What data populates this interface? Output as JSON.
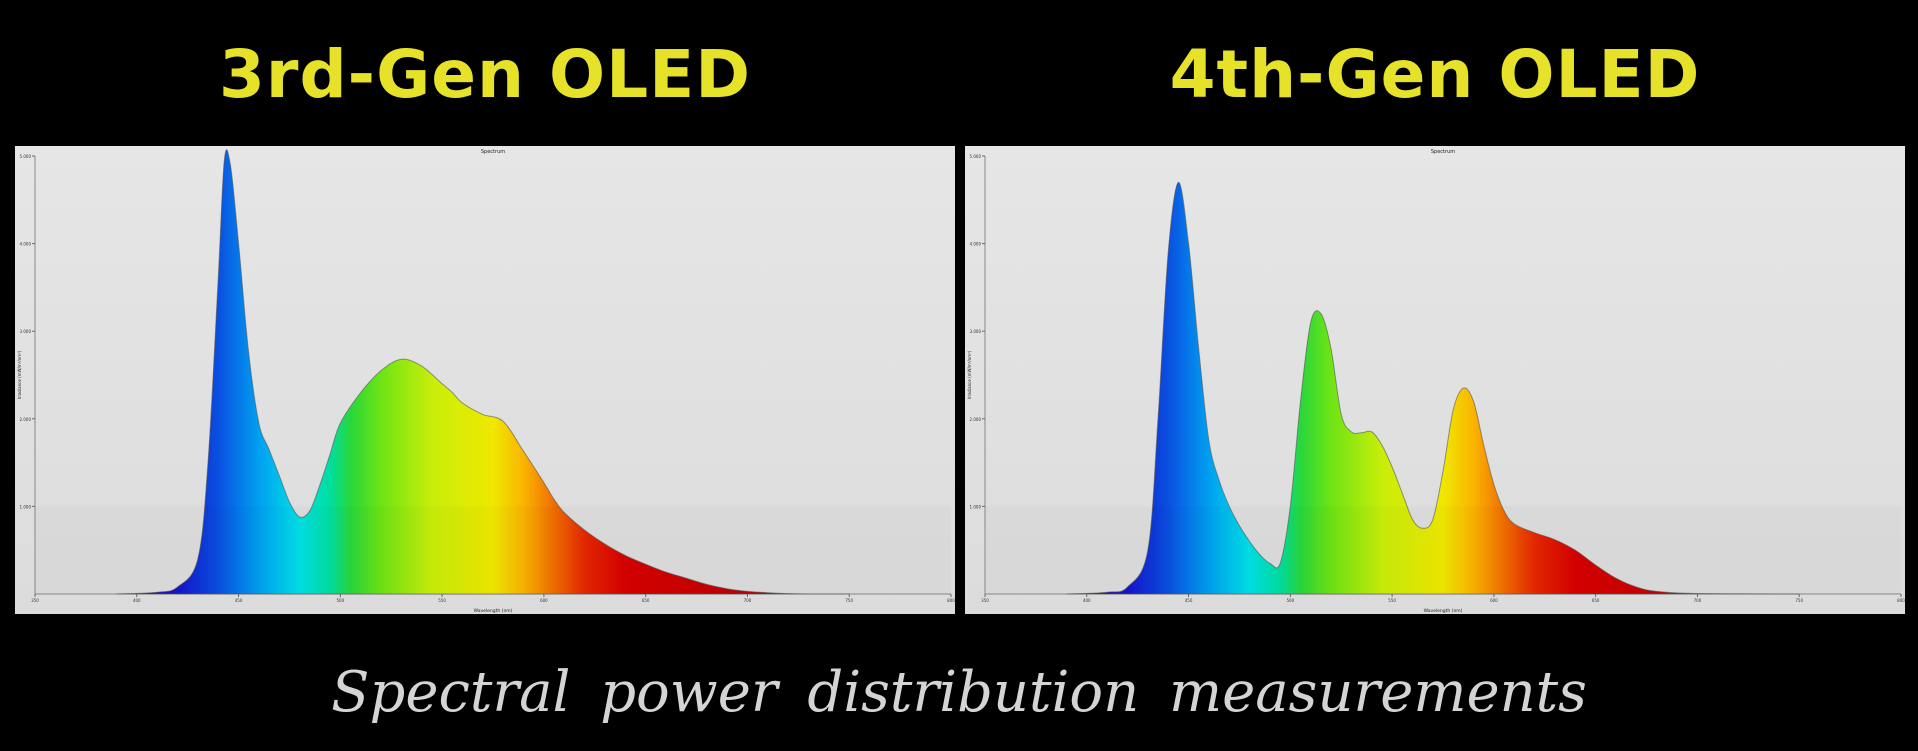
{
  "page": {
    "caption": "Spectral power distribution measurements"
  },
  "colors": {
    "title": "#e6e22a",
    "background": "#000000",
    "plot_background": "#e4e4e4",
    "caption": "#d4d4d4"
  },
  "chart_data": [
    {
      "type": "area",
      "panel_title": "3rd-Gen OLED",
      "title": "Spectrum",
      "xlabel": "Wavelength (nm)",
      "ylabel": "Irradiance (mW/m²/nm²)",
      "xlim": [
        350,
        800
      ],
      "ylim": [
        0,
        5
      ],
      "xticks": [
        350,
        400,
        450,
        500,
        550,
        600,
        650,
        700,
        750,
        800
      ],
      "yticks": [
        1,
        2,
        3,
        4,
        5
      ],
      "grid": false,
      "fill": "wavelength-spectrum-gradient",
      "x": [
        390,
        410,
        420,
        430,
        435,
        440,
        443,
        446,
        450,
        455,
        460,
        465,
        470,
        475,
        480,
        485,
        490,
        495,
        500,
        510,
        520,
        530,
        540,
        550,
        555,
        560,
        570,
        580,
        590,
        600,
        605,
        610,
        620,
        630,
        640,
        650,
        660,
        670,
        680,
        690,
        700,
        710,
        720,
        730,
        750
      ],
      "y": [
        0,
        0.02,
        0.08,
        0.4,
        1.5,
        3.6,
        4.95,
        4.9,
        4.0,
        2.75,
        1.95,
        1.65,
        1.35,
        1.05,
        0.88,
        0.95,
        1.25,
        1.6,
        1.95,
        2.3,
        2.55,
        2.68,
        2.6,
        2.4,
        2.3,
        2.18,
        2.05,
        1.97,
        1.63,
        1.27,
        1.08,
        0.93,
        0.73,
        0.57,
        0.44,
        0.34,
        0.25,
        0.18,
        0.11,
        0.06,
        0.03,
        0.015,
        0.005,
        0,
        0
      ]
    },
    {
      "type": "area",
      "panel_title": "4th-Gen OLED",
      "title": "Spectrum",
      "xlabel": "Wavelength (nm)",
      "ylabel": "Irradiance (mW/m²/nm²)",
      "xlim": [
        350,
        800
      ],
      "ylim": [
        0,
        5
      ],
      "xticks": [
        350,
        400,
        450,
        500,
        550,
        600,
        650,
        700,
        750,
        800
      ],
      "yticks": [
        1,
        2,
        3,
        4,
        5
      ],
      "grid": false,
      "fill": "wavelength-spectrum-gradient",
      "x": [
        390,
        410,
        420,
        430,
        435,
        440,
        445,
        450,
        455,
        460,
        465,
        470,
        475,
        480,
        485,
        490,
        495,
        500,
        505,
        510,
        515,
        520,
        525,
        530,
        535,
        540,
        545,
        550,
        555,
        560,
        565,
        570,
        575,
        580,
        585,
        590,
        595,
        600,
        605,
        610,
        620,
        630,
        640,
        650,
        660,
        670,
        680,
        700,
        750
      ],
      "y": [
        0,
        0.02,
        0.08,
        0.5,
        2.0,
        3.9,
        4.7,
        4.0,
        2.8,
        1.75,
        1.3,
        1.0,
        0.78,
        0.6,
        0.45,
        0.35,
        0.35,
        1.0,
        2.2,
        3.1,
        3.2,
        2.8,
        2.05,
        1.85,
        1.84,
        1.85,
        1.7,
        1.45,
        1.15,
        0.85,
        0.75,
        0.85,
        1.4,
        2.1,
        2.35,
        2.2,
        1.7,
        1.25,
        0.95,
        0.8,
        0.7,
        0.62,
        0.5,
        0.33,
        0.18,
        0.08,
        0.03,
        0.005,
        0
      ]
    }
  ]
}
